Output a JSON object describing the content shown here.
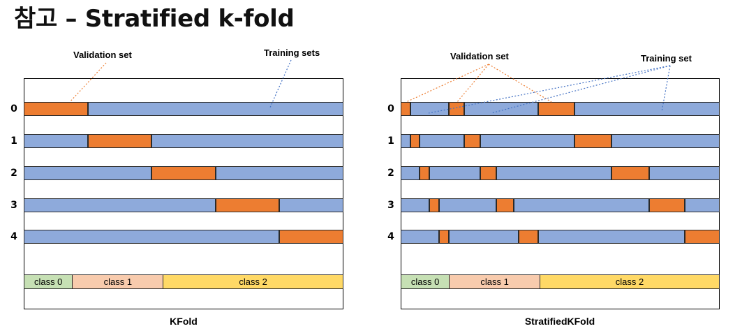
{
  "title": "참고 – Stratified k-fold",
  "colors": {
    "training": "#8eaadb",
    "validation": "#ed7d31",
    "class_0": "#c6e0b4",
    "class_1": "#f8cbad",
    "class_2": "#ffd966",
    "validation_leader": "#ed7d31",
    "training_leader": "#4472c4"
  },
  "classes": [
    {
      "label": "class 0",
      "fraction": 0.15
    },
    {
      "label": "class 1",
      "fraction": 0.285
    },
    {
      "label": "class 2",
      "fraction": 0.565
    }
  ],
  "panels": [
    {
      "id": "kfold",
      "caption": "KFold",
      "validation_label": "Validation set",
      "training_label": "Training sets",
      "folds": [
        {
          "label": "0",
          "validation": [
            [
              0.0,
              0.2
            ]
          ]
        },
        {
          "label": "1",
          "validation": [
            [
              0.2,
              0.4
            ]
          ]
        },
        {
          "label": "2",
          "validation": [
            [
              0.4,
              0.6
            ]
          ]
        },
        {
          "label": "3",
          "validation": [
            [
              0.6,
              0.8
            ]
          ]
        },
        {
          "label": "4",
          "validation": [
            [
              0.8,
              1.0
            ]
          ]
        }
      ]
    },
    {
      "id": "stratified",
      "caption": "StratifiedKFold",
      "validation_label": "Validation set",
      "training_label": "Training set",
      "folds": [
        {
          "label": "0",
          "validation": [
            [
              0.0,
              0.03
            ],
            [
              0.15,
              0.2
            ],
            [
              0.43,
              0.545
            ]
          ]
        },
        {
          "label": "1",
          "validation": [
            [
              0.03,
              0.06
            ],
            [
              0.2,
              0.25
            ],
            [
              0.545,
              0.66
            ]
          ]
        },
        {
          "label": "2",
          "validation": [
            [
              0.06,
              0.09
            ],
            [
              0.25,
              0.3
            ],
            [
              0.66,
              0.78
            ]
          ]
        },
        {
          "label": "3",
          "validation": [
            [
              0.09,
              0.12
            ],
            [
              0.3,
              0.355
            ],
            [
              0.78,
              0.89
            ]
          ]
        },
        {
          "label": "4",
          "validation": [
            [
              0.12,
              0.15
            ],
            [
              0.37,
              0.43
            ],
            [
              0.89,
              1.0
            ]
          ]
        }
      ]
    }
  ]
}
